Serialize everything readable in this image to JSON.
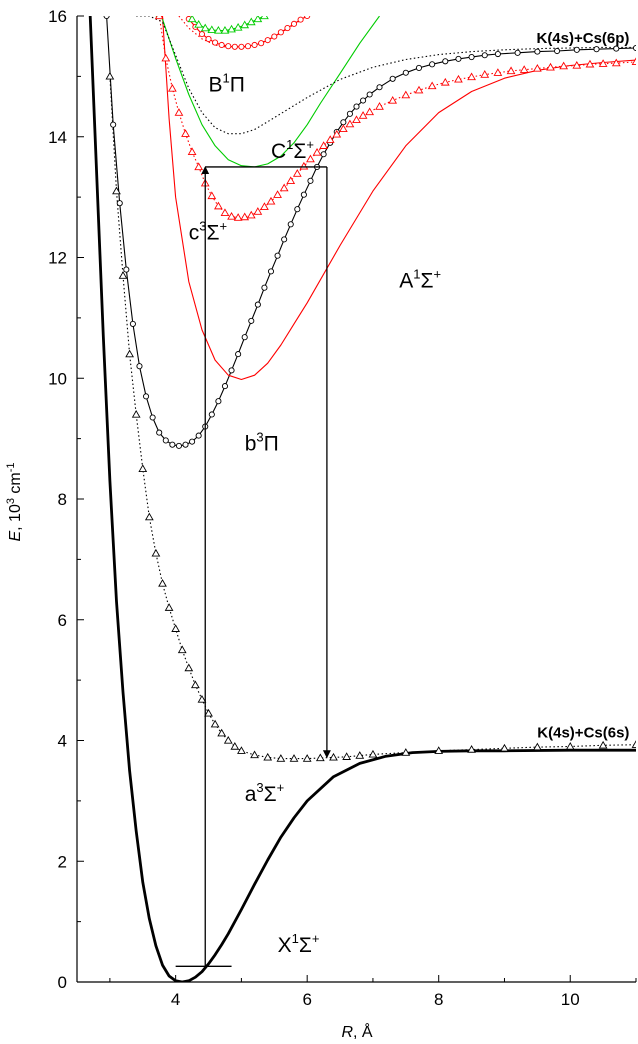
{
  "chart_data": {
    "type": "line",
    "xlabel": "R, Å",
    "ylabel": "E, 10³ cm⁻¹",
    "xlabel_parts": {
      "var": "R",
      "unit": ", Å"
    },
    "ylabel_parts": {
      "var": "E",
      "unit": ", 10",
      "exp": "3",
      "unit2": " cm",
      "exp2": "-1"
    },
    "xlim": [
      2.5,
      11.0
    ],
    "ylim": [
      0,
      16
    ],
    "xticks": [
      4,
      6,
      8,
      10
    ],
    "yticks": [
      0,
      2,
      4,
      6,
      8,
      10,
      12,
      14,
      16
    ],
    "xtick_labels": [
      "4",
      "6",
      "8",
      "10"
    ],
    "ytick_labels": [
      "0",
      "2",
      "4",
      "6",
      "8",
      "10",
      "12",
      "14",
      "16"
    ],
    "asymptotes": [
      {
        "text": "K(4s)+Cs(6p)",
        "x": 10.9,
        "y": 15.55
      },
      {
        "text": "K(4s)+Cs(6s)",
        "x": 10.9,
        "y": 4.05
      }
    ],
    "state_labels": [
      {
        "base": "X",
        "sup": "1",
        "sym": "Σ",
        "sup2": "+",
        "x": 5.55,
        "y": 0.5
      },
      {
        "base": "a",
        "sup": "3",
        "sym": "Σ",
        "sup2": "+",
        "x": 5.05,
        "y": 3.0
      },
      {
        "base": "b",
        "sup": "3",
        "sym": "Π",
        "sup2": "",
        "x": 5.05,
        "y": 8.8
      },
      {
        "base": "A",
        "sup": "1",
        "sym": "Σ",
        "sup2": "+",
        "x": 7.4,
        "y": 11.5
      },
      {
        "base": "c",
        "sup": "3",
        "sym": "Σ",
        "sup2": "+",
        "x": 4.2,
        "y": 12.3
      },
      {
        "base": "C",
        "sup": "1",
        "sym": "Σ",
        "sup2": "+",
        "x": 5.45,
        "y": 13.65
      },
      {
        "base": "B",
        "sup": "1",
        "sym": "Π",
        "sup2": "",
        "x": 4.5,
        "y": 14.75
      }
    ],
    "series": [
      {
        "id": "X",
        "color": "#000000",
        "style": "thick",
        "x": [
          2.7,
          2.9,
          3.0,
          3.1,
          3.2,
          3.3,
          3.4,
          3.5,
          3.6,
          3.7,
          3.8,
          3.9,
          4.0,
          4.1,
          4.2,
          4.3,
          4.4,
          4.5,
          4.6,
          4.7,
          4.8,
          5.0,
          5.2,
          5.4,
          5.6,
          5.8,
          6.0,
          6.4,
          6.8,
          7.2,
          7.6,
          8.0,
          8.5,
          9.0,
          10.0,
          11.0
        ],
        "y": [
          16.0,
          10.7,
          8.3,
          6.3,
          4.8,
          3.5,
          2.5,
          1.65,
          1.05,
          0.6,
          0.28,
          0.1,
          0.02,
          0.0,
          0.02,
          0.08,
          0.17,
          0.3,
          0.45,
          0.62,
          0.8,
          1.2,
          1.62,
          2.02,
          2.4,
          2.72,
          3.0,
          3.4,
          3.62,
          3.74,
          3.8,
          3.82,
          3.83,
          3.83,
          3.84,
          3.84
        ]
      },
      {
        "id": "a3Sigma",
        "color": "#000000",
        "style": "dotted",
        "marker": "triangle",
        "x": [
          3.0,
          3.1,
          3.2,
          3.3,
          3.4,
          3.5,
          3.6,
          3.7,
          3.8,
          3.9,
          4.0,
          4.1,
          4.2,
          4.3,
          4.4,
          4.5,
          4.6,
          4.7,
          4.8,
          4.9,
          5.0,
          5.2,
          5.4,
          5.6,
          5.8,
          6.0,
          6.2,
          6.4,
          6.6,
          6.8,
          7.0,
          7.5,
          8.0,
          8.5,
          9.0,
          9.5,
          10.0,
          10.5,
          11.0
        ],
        "y": [
          15.0,
          13.1,
          11.7,
          10.4,
          9.4,
          8.5,
          7.7,
          7.1,
          6.6,
          6.2,
          5.85,
          5.5,
          5.2,
          4.92,
          4.68,
          4.45,
          4.27,
          4.12,
          4.0,
          3.9,
          3.83,
          3.76,
          3.72,
          3.7,
          3.7,
          3.7,
          3.71,
          3.72,
          3.73,
          3.75,
          3.77,
          3.8,
          3.83,
          3.85,
          3.87,
          3.89,
          3.9,
          3.92,
          3.93
        ]
      },
      {
        "id": "b3Pi",
        "color": "#000000",
        "style": "solid",
        "marker": "circle",
        "x": [
          2.95,
          3.05,
          3.15,
          3.25,
          3.35,
          3.45,
          3.55,
          3.65,
          3.75,
          3.85,
          3.95,
          4.05,
          4.15,
          4.25,
          4.35,
          4.45,
          4.55,
          4.65,
          4.75,
          4.85,
          4.95,
          5.05,
          5.15,
          5.25,
          5.35,
          5.45,
          5.55,
          5.65,
          5.75,
          5.85,
          5.95,
          6.05,
          6.15,
          6.25,
          6.35,
          6.45,
          6.55,
          6.65,
          6.75,
          6.85,
          6.95,
          7.1,
          7.3,
          7.5,
          7.7,
          7.9,
          8.1,
          8.3,
          8.5,
          8.7,
          8.9,
          9.2,
          9.5,
          9.8,
          10.1,
          10.4,
          10.7,
          11.0
        ],
        "y": [
          16.0,
          14.2,
          12.9,
          11.8,
          10.9,
          10.2,
          9.7,
          9.35,
          9.1,
          8.97,
          8.9,
          8.88,
          8.9,
          8.95,
          9.05,
          9.2,
          9.4,
          9.62,
          9.87,
          10.13,
          10.4,
          10.68,
          10.95,
          11.22,
          11.5,
          11.77,
          12.03,
          12.3,
          12.55,
          12.8,
          13.04,
          13.27,
          13.5,
          13.71,
          13.9,
          14.08,
          14.24,
          14.38,
          14.5,
          14.6,
          14.7,
          14.82,
          14.96,
          15.06,
          15.14,
          15.2,
          15.25,
          15.29,
          15.32,
          15.35,
          15.37,
          15.39,
          15.41,
          15.42,
          15.44,
          15.45,
          15.46,
          15.47
        ]
      },
      {
        "id": "A1Sigma",
        "color": "#ff0000",
        "style": "solid",
        "x": [
          3.8,
          3.9,
          4.0,
          4.2,
          4.4,
          4.6,
          4.8,
          5.0,
          5.2,
          5.4,
          5.6,
          5.8,
          6.0,
          6.5,
          7.0,
          7.5,
          8.0,
          8.5,
          9.0,
          9.5,
          10.0,
          10.5,
          11.0
        ],
        "y": [
          16.0,
          14.3,
          13.0,
          11.6,
          10.8,
          10.3,
          10.05,
          9.98,
          10.05,
          10.25,
          10.55,
          10.9,
          11.25,
          12.2,
          13.1,
          13.85,
          14.4,
          14.75,
          14.97,
          15.1,
          15.18,
          15.23,
          15.27
        ]
      },
      {
        "id": "c3Sigma",
        "color": "#ff0000",
        "style": "dotted",
        "marker": "triangle",
        "x": [
          3.75,
          3.85,
          3.95,
          4.05,
          4.15,
          4.25,
          4.35,
          4.45,
          4.55,
          4.65,
          4.75,
          4.85,
          4.95,
          5.05,
          5.15,
          5.25,
          5.35,
          5.45,
          5.55,
          5.65,
          5.75,
          5.85,
          5.95,
          6.05,
          6.15,
          6.25,
          6.35,
          6.45,
          6.55,
          6.65,
          6.75,
          6.85,
          6.95,
          7.1,
          7.3,
          7.5,
          7.7,
          7.9,
          8.1,
          8.3,
          8.5,
          8.7,
          8.9,
          9.1,
          9.3,
          9.5,
          9.7,
          9.9,
          10.1,
          10.3,
          10.5,
          10.7,
          11.0
        ],
        "y": [
          16.0,
          15.3,
          14.8,
          14.4,
          14.05,
          13.75,
          13.5,
          13.23,
          13.02,
          12.85,
          12.74,
          12.68,
          12.66,
          12.67,
          12.7,
          12.76,
          12.84,
          12.93,
          13.04,
          13.15,
          13.27,
          13.39,
          13.51,
          13.63,
          13.74,
          13.85,
          13.95,
          14.04,
          14.13,
          14.21,
          14.28,
          14.35,
          14.41,
          14.5,
          14.6,
          14.69,
          14.77,
          14.84,
          14.9,
          14.95,
          14.99,
          15.03,
          15.06,
          15.09,
          15.11,
          15.13,
          15.15,
          15.17,
          15.18,
          15.2,
          15.21,
          15.22,
          15.24
        ]
      },
      {
        "id": "C1Sigma",
        "color": "#00cc00",
        "style": "solid",
        "x": [
          3.7,
          3.8,
          4.0,
          4.2,
          4.4,
          4.6,
          4.8,
          5.0,
          5.2,
          5.4,
          5.6,
          5.8,
          6.0,
          6.2,
          6.5,
          6.8,
          7.1
        ],
        "y": [
          16.0,
          15.95,
          15.3,
          14.7,
          14.2,
          13.85,
          13.62,
          13.52,
          13.5,
          13.55,
          13.68,
          13.9,
          14.2,
          14.55,
          15.05,
          15.55,
          16.0
        ]
      },
      {
        "id": "B1Pi",
        "color": "#000000",
        "style": "dotted",
        "x": [
          3.4,
          3.6,
          3.8,
          4.0,
          4.2,
          4.4,
          4.6,
          4.8,
          5.0,
          5.2,
          5.4,
          5.7,
          6.0,
          6.5,
          7.0,
          7.5,
          8.0,
          8.5,
          9.0,
          9.5,
          10.0,
          10.5,
          11.0
        ],
        "y": [
          16.0,
          16.0,
          15.9,
          15.35,
          14.8,
          14.4,
          14.15,
          14.05,
          14.05,
          14.12,
          14.25,
          14.45,
          14.65,
          14.95,
          15.15,
          15.28,
          15.36,
          15.41,
          15.44,
          15.46,
          15.47,
          15.48,
          15.48
        ]
      },
      {
        "id": "upper-red-dotted",
        "color": "#ff0000",
        "style": "dotted",
        "x": [
          4.05,
          4.2,
          4.4,
          4.6,
          4.8,
          5.0,
          5.2,
          5.4,
          5.6,
          5.8,
          6.0
        ],
        "y": [
          16.0,
          15.8,
          15.62,
          15.52,
          15.48,
          15.48,
          15.52,
          15.6,
          15.72,
          15.86,
          16.0
        ]
      },
      {
        "id": "upper-red-circles",
        "color": "#ff0000",
        "style": "solid",
        "marker": "circle",
        "x": [
          4.2,
          4.3,
          4.4,
          4.5,
          4.6,
          4.7,
          4.8,
          4.9,
          5.0,
          5.1,
          5.2,
          5.3,
          5.4,
          5.5,
          5.6,
          5.7,
          5.8,
          5.9,
          6.0
        ],
        "y": [
          15.95,
          15.82,
          15.7,
          15.62,
          15.56,
          15.52,
          15.5,
          15.49,
          15.49,
          15.5,
          15.52,
          15.55,
          15.6,
          15.66,
          15.73,
          15.8,
          15.87,
          15.94,
          16.0
        ]
      },
      {
        "id": "upper-green-triangles",
        "color": "#00cc00",
        "style": "solid",
        "marker": "triangle",
        "x": [
          4.25,
          4.35,
          4.45,
          4.55,
          4.65,
          4.75,
          4.85,
          4.95,
          5.05,
          5.15,
          5.25,
          5.35
        ],
        "y": [
          15.95,
          15.86,
          15.8,
          15.77,
          15.76,
          15.76,
          15.78,
          15.81,
          15.85,
          15.9,
          15.95,
          16.0
        ]
      }
    ],
    "transitions": [
      {
        "x": 4.45,
        "from": 0.26,
        "to": 13.5,
        "direction": "up"
      },
      {
        "x": 6.3,
        "from": 13.5,
        "to": 3.72,
        "direction": "down"
      }
    ],
    "connectors": [
      {
        "x1": 4.45,
        "y1": 13.5,
        "x2": 6.3,
        "y2": 13.5
      },
      {
        "x1": 4.0,
        "y1": 0.26,
        "x2": 4.85,
        "y2": 0.26
      }
    ]
  }
}
